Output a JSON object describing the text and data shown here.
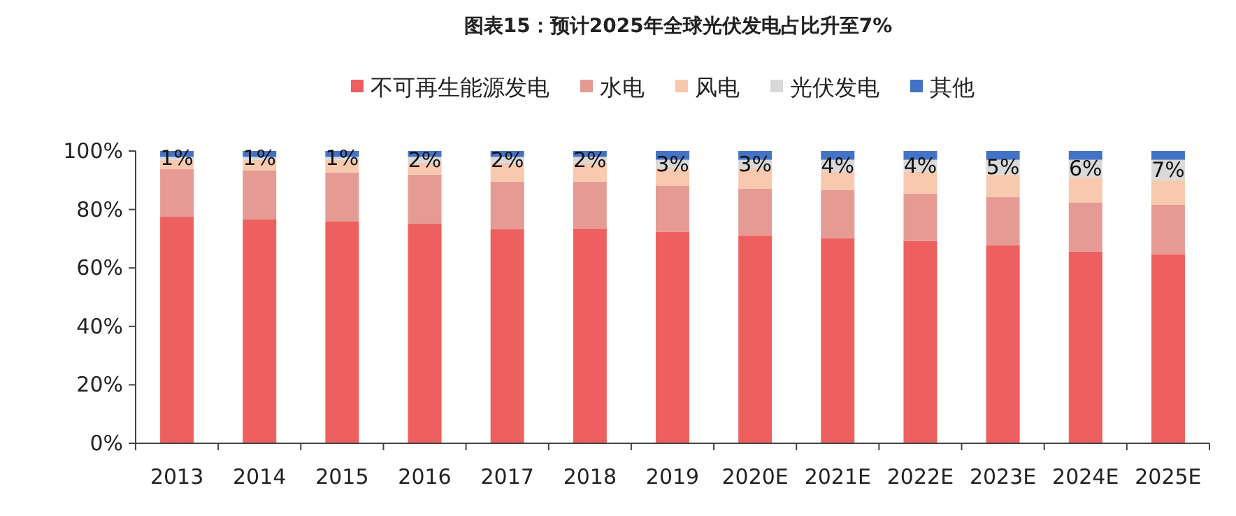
{
  "chart_data": {
    "type": "bar",
    "stacked": true,
    "title": "图表15：预计2025年全球光伏发电占比升至7%",
    "legend": "top",
    "grid": false,
    "categories": [
      "2013",
      "2014",
      "2015",
      "2016",
      "2017",
      "2018",
      "2019",
      "2020E",
      "2021E",
      "2022E",
      "2023E",
      "2024E",
      "2025E"
    ],
    "ylim": [
      0,
      100
    ],
    "yticks": [
      {
        "value": 0,
        "label": "0%"
      },
      {
        "value": 20,
        "label": "20%"
      },
      {
        "value": 40,
        "label": "40%"
      },
      {
        "value": 60,
        "label": "60%"
      },
      {
        "value": 80,
        "label": "80%"
      },
      {
        "value": 100,
        "label": "100%"
      }
    ],
    "series": [
      {
        "name": "不可再生能源发电",
        "color": "#ee6060",
        "values": [
          77.5,
          76.7,
          76,
          75.1,
          73.2,
          73.5,
          72.4,
          71.1,
          70.2,
          69.2,
          67.8,
          65.6,
          64.7
        ]
      },
      {
        "name": "水电",
        "color": "#e59b94",
        "values": [
          16.4,
          16.6,
          16.7,
          16.8,
          16.3,
          16,
          15.8,
          16,
          16.4,
          16.3,
          16.4,
          16.7,
          17
        ]
      },
      {
        "name": "风电",
        "color": "#f8c9ae",
        "values": [
          3.1,
          3.7,
          4.3,
          4.1,
          6.5,
          6.5,
          5.8,
          6.9,
          6.4,
          7.5,
          7.8,
          8.7,
          8.3
        ]
      },
      {
        "name": "光伏发电",
        "color": "#d9d9d9",
        "values": [
          1,
          1,
          1,
          2,
          2,
          2,
          3,
          3,
          4,
          4,
          5,
          6,
          7
        ],
        "value_labels": [
          "1%",
          "1%",
          "1%",
          "2%",
          "2%",
          "2%",
          "3%",
          "3%",
          "4%",
          "4%",
          "5%",
          "6%",
          "7%"
        ]
      },
      {
        "name": "其他",
        "color": "#4472c4",
        "values": [
          2,
          2,
          2,
          2,
          2,
          2,
          3,
          3,
          3,
          3,
          3,
          3,
          3
        ]
      }
    ]
  }
}
